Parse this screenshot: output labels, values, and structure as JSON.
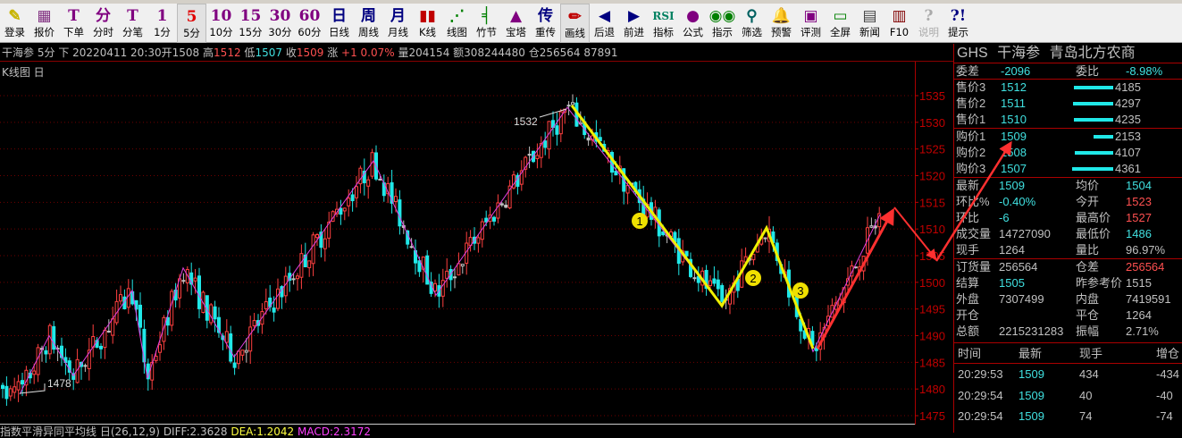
{
  "toolbar": [
    {
      "label": "登录",
      "icon": "login-icon",
      "glyph": "✎",
      "color": "#c8b400"
    },
    {
      "label": "报价",
      "icon": "quote-icon",
      "glyph": "▦",
      "color": "#803080"
    },
    {
      "label": "下单",
      "icon": "order-icon",
      "glyph": "T",
      "color": "#800080"
    },
    {
      "label": "分时",
      "icon": "intraday-icon",
      "glyph": "分",
      "color": "#800080"
    },
    {
      "label": "分笔",
      "icon": "tick-icon",
      "glyph": "T",
      "color": "#800080"
    },
    {
      "label": "1分",
      "icon": "1min-icon",
      "glyph": "1",
      "color": "#800080"
    },
    {
      "label": "5分",
      "icon": "5min-icon",
      "glyph": "5",
      "color": "#e00000",
      "selected": true
    },
    {
      "label": "10分",
      "icon": "10min-icon",
      "glyph": "10",
      "color": "#800080"
    },
    {
      "label": "15分",
      "icon": "15min-icon",
      "glyph": "15",
      "color": "#800080"
    },
    {
      "label": "30分",
      "icon": "30min-icon",
      "glyph": "30",
      "color": "#800080"
    },
    {
      "label": "60分",
      "icon": "60min-icon",
      "glyph": "60",
      "color": "#800080"
    },
    {
      "label": "日线",
      "icon": "daily-icon",
      "glyph": "日",
      "color": "#000080"
    },
    {
      "label": "周线",
      "icon": "weekly-icon",
      "glyph": "周",
      "color": "#000080"
    },
    {
      "label": "月线",
      "icon": "monthly-icon",
      "glyph": "月",
      "color": "#000080"
    },
    {
      "label": "K线",
      "icon": "candlestick-icon",
      "glyph": "▮▮",
      "color": "#c00000"
    },
    {
      "label": "线图",
      "icon": "line-chart-icon",
      "glyph": "⋰",
      "color": "#008000"
    },
    {
      "label": "竹节",
      "icon": "bar-chart-icon",
      "glyph": "╡",
      "color": "#008000"
    },
    {
      "label": "宝塔",
      "icon": "tower-icon",
      "glyph": "▲",
      "color": "#800080"
    },
    {
      "label": "重传",
      "icon": "reload-icon",
      "glyph": "传",
      "color": "#000080"
    },
    {
      "label": "画线",
      "icon": "draw-line-icon",
      "glyph": "✏",
      "color": "#c00000",
      "selected": true
    },
    {
      "label": "后退",
      "icon": "back-icon",
      "glyph": "◀",
      "color": "#000080"
    },
    {
      "label": "前进",
      "icon": "forward-icon",
      "glyph": "▶",
      "color": "#000080"
    },
    {
      "label": "指标",
      "icon": "rsi-icon",
      "glyph": "RSI",
      "color": "#008060"
    },
    {
      "label": "公式",
      "icon": "formula-icon",
      "glyph": "●",
      "color": "#800080"
    },
    {
      "label": "指示",
      "icon": "indicator-icon",
      "glyph": "◉◉",
      "color": "#008000"
    },
    {
      "label": "筛选",
      "icon": "binoculars-icon",
      "glyph": "⚲",
      "color": "#006060"
    },
    {
      "label": "预警",
      "icon": "alarm-bell-icon",
      "glyph": "🔔",
      "color": "#008060"
    },
    {
      "label": "评测",
      "icon": "evaluate-icon",
      "glyph": "▣",
      "color": "#800080"
    },
    {
      "label": "全屏",
      "icon": "fullscreen-icon",
      "glyph": "▭",
      "color": "#008000"
    },
    {
      "label": "新闻",
      "icon": "news-icon",
      "glyph": "▤",
      "color": "#404040"
    },
    {
      "label": "F10",
      "icon": "books-icon",
      "glyph": "▥",
      "color": "#800000"
    },
    {
      "label": "说明",
      "icon": "help-pointer-icon",
      "glyph": "?",
      "color": "#aaaaaa",
      "disabled": true
    },
    {
      "label": "提示",
      "icon": "tip-icon",
      "glyph": "?!",
      "color": "#000080"
    }
  ],
  "infobar": {
    "name": "干海参",
    "period": "5分",
    "dir": "下",
    "datetime": "20220411 20:30",
    "open_label": "开",
    "open": "1508",
    "high_label": "高",
    "high": "1512",
    "low_label": "低",
    "low": "1507",
    "close_label": "收",
    "close": "1509",
    "change_label": "涨",
    "change": "+1 0.07%",
    "volume_label": "量",
    "volume": "204154",
    "amount_label": "额",
    "amount": "308244480",
    "oi_label": "仓",
    "oi": "256564 87891"
  },
  "chart_title": "K线图 日",
  "macd": {
    "name": "指数平滑异同平均线 日(26,12,9)",
    "diff": "DIFF:2.3628",
    "dea": "DEA:1.2042",
    "macd": "MACD:2.3172"
  },
  "chart_data": {
    "type": "candlestick",
    "period": "5分",
    "yticks": [
      1535,
      1530,
      1525,
      1520,
      1515,
      1510,
      1505,
      1500,
      1495,
      1490,
      1485,
      1480,
      1475
    ],
    "ylim": [
      1474,
      1537
    ],
    "grid": true,
    "colors": {
      "up": "#ff4040",
      "down": "#20e8e8",
      "zigzag": "#e040e0",
      "axis": "#c00000",
      "grid": "#700000"
    },
    "zigzag_pivots": [
      1479,
      1490,
      1482.5,
      1498.5,
      1482,
      1502.7,
      1486,
      1522.8,
      1497.6,
      1532.8,
      1495.6,
      1510.5,
      1487,
      1512.7
    ],
    "annotations": [
      {
        "text": "1532",
        "price": 1532
      },
      {
        "text": "1478",
        "price": 1478
      }
    ],
    "drawn_yellow_wave": [
      1532.5,
      1495.6,
      1510.5,
      1487.5
    ],
    "wave_labels": [
      "1",
      "2",
      "3"
    ],
    "drawn_red_projection": [
      1487,
      1514,
      1505,
      1527
    ]
  },
  "panel": {
    "title": "GHS  干海参  青岛北方农商",
    "wei": {
      "l1": "委差",
      "v1": "-2096",
      "l2": "委比",
      "v2": "-8.98%"
    },
    "asks": [
      {
        "label": "售价3",
        "price": "1512",
        "qty": "4185",
        "bar": 0.78
      },
      {
        "label": "售价2",
        "price": "1511",
        "qty": "4297",
        "bar": 0.8
      },
      {
        "label": "售价1",
        "price": "1510",
        "qty": "4235",
        "bar": 0.79
      }
    ],
    "bids": [
      {
        "label": "购价1",
        "price": "1509",
        "qty": "2153",
        "bar": 0.4
      },
      {
        "label": "购价2",
        "price": "1508",
        "qty": "4107",
        "bar": 0.77
      },
      {
        "label": "购价3",
        "price": "1507",
        "qty": "4361",
        "bar": 0.82
      }
    ],
    "stats1": [
      {
        "l1": "最新",
        "v1": "1509",
        "c1": "c",
        "l2": "均价",
        "v2": "1504",
        "c2": "c"
      },
      {
        "l1": "环比%",
        "v1": "-0.40%",
        "c1": "c",
        "l2": "今开",
        "v2": "1523",
        "c2": "r"
      },
      {
        "l1": "环比",
        "v1": "-6",
        "c1": "c",
        "l2": "最高价",
        "v2": "1527",
        "c2": "r"
      },
      {
        "l1": "成交量",
        "v1": "14727090",
        "c1": "w",
        "l2": "最低价",
        "v2": "1486",
        "c2": "c"
      },
      {
        "l1": "现手",
        "v1": "1264",
        "c1": "w",
        "l2": "量比",
        "v2": "96.97%",
        "c2": "w"
      }
    ],
    "stats2": [
      {
        "l1": "订货量",
        "v1": "256564",
        "c1": "w",
        "l2": "仓差",
        "v2": "256564",
        "c2": "r"
      },
      {
        "l1": "结算",
        "v1": "1505",
        "c1": "c",
        "l2": "昨参考价",
        "v2": "1515",
        "c2": "w"
      },
      {
        "l1": "外盘",
        "v1": "7307499",
        "c1": "w",
        "l2": "内盘",
        "v2": "7419591",
        "c2": "w"
      },
      {
        "l1": "开仓",
        "v1": "",
        "c1": "w",
        "l2": "平仓",
        "v2": "1264",
        "c2": "w"
      },
      {
        "l1": "总额",
        "v1": "2215231283",
        "c1": "w",
        "l2": "振幅",
        "v2": "2.71%",
        "c2": "w"
      }
    ],
    "ticks_header": [
      "时间",
      "最新",
      "现手",
      "增仓"
    ],
    "ticks": [
      [
        "20:29:53",
        "1509",
        "434",
        "-434"
      ],
      [
        "20:29:54",
        "1509",
        "40",
        "-40"
      ],
      [
        "20:29:54",
        "1509",
        "74",
        "-74"
      ]
    ]
  }
}
